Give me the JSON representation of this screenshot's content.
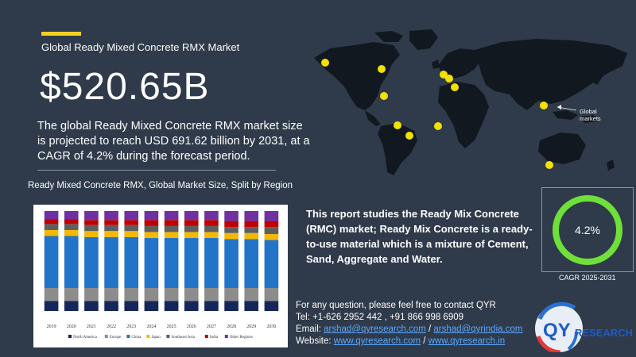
{
  "header": {
    "title": "Global Ready Mixed Concrete RMX Market",
    "market_value": "$520.65B",
    "description": "The global Ready Mixed Concrete RMX market size is projected to reach USD 691.62 billion by 2031, at a CAGR of 4.2% during the forecast period."
  },
  "map": {
    "label_line1": "Global",
    "label_line2": "markets"
  },
  "report": {
    "text": "This report studies the Ready Mix Concrete (RMC) market; Ready Mix Concrete is a ready-to-use material which is a mixture of Cement, Sand, Aggregate and Water."
  },
  "gauge": {
    "value_label": "4.2%",
    "caption": "CAGR 2025-2031",
    "ring_color": "#6fe03a"
  },
  "contact": {
    "line1": "For any question, please feel free to contact QYR",
    "tel_label": "Tel: ",
    "tel": "+1-626 2952 442 , +91 866 998 6909",
    "email_label": "Email: ",
    "email1": "arshad@qyresearch.com",
    "sep": " / ",
    "email2": "arshad@qyrindia.com",
    "website_label": "Website: ",
    "web1": "www.qyresearch.com",
    "web2": "www.qyresearch.in"
  },
  "logo": {
    "letters": "QY",
    "word": "RESEARCH"
  },
  "chart_data": {
    "type": "bar",
    "stacked": true,
    "normalized": true,
    "title": "Ready Mixed Concrete RMX, Global Market Size, Split by Region",
    "categories": [
      "2019",
      "2020",
      "2021",
      "2022",
      "2023",
      "2024",
      "2025",
      "2026",
      "2027",
      "2028",
      "2029",
      "2030"
    ],
    "ylim": [
      0,
      100
    ],
    "legend_position": "bottom",
    "series": [
      {
        "name": "North America",
        "color": "#14265a",
        "values": [
          10,
          10,
          10,
          10,
          10,
          10,
          10,
          10,
          10,
          10,
          10,
          10
        ]
      },
      {
        "name": "Europe",
        "color": "#8c8c8c",
        "values": [
          13,
          13,
          13,
          13,
          13,
          13,
          13,
          13,
          13,
          13,
          13,
          13
        ]
      },
      {
        "name": "China",
        "color": "#2274c8",
        "values": [
          52,
          52,
          51,
          51,
          51,
          50,
          50,
          50,
          50,
          49,
          49,
          48
        ]
      },
      {
        "name": "Japan",
        "color": "#f5b800",
        "values": [
          6,
          6,
          6,
          6,
          6,
          6,
          6,
          6,
          6,
          6,
          6,
          6
        ]
      },
      {
        "name": "Southeast Asia",
        "color": "#5e5e5e",
        "values": [
          6,
          6,
          6,
          6,
          6,
          6,
          6,
          6,
          6,
          6,
          6,
          7
        ]
      },
      {
        "name": "India",
        "color": "#c00000",
        "values": [
          5,
          5,
          5,
          5,
          5,
          6,
          6,
          6,
          6,
          6,
          6,
          6
        ]
      },
      {
        "name": "Other Regions",
        "color": "#7030a0",
        "values": [
          8,
          8,
          9,
          9,
          9,
          9,
          9,
          9,
          9,
          10,
          10,
          10
        ]
      }
    ]
  }
}
